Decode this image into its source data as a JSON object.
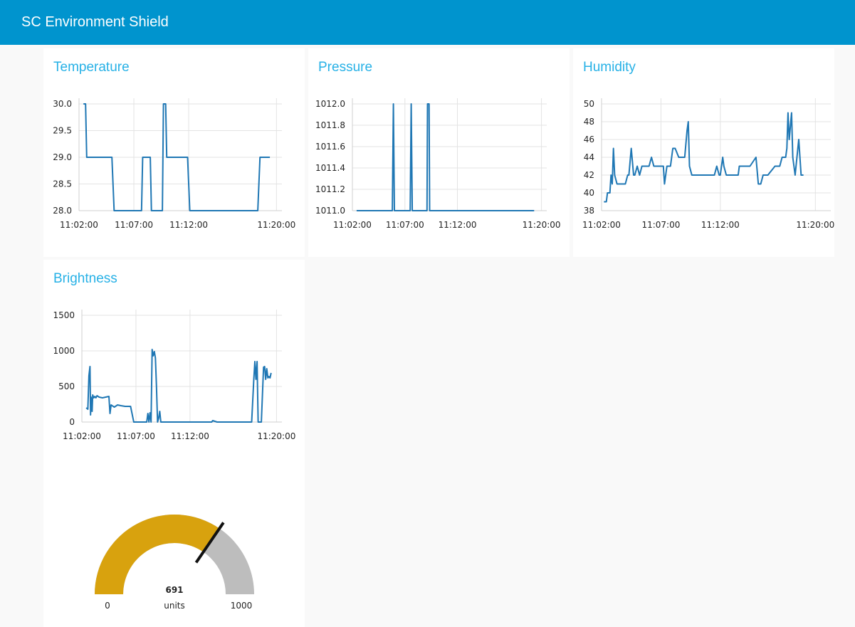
{
  "header": {
    "title": "SC Environment Shield"
  },
  "cards": {
    "temperature": "Temperature",
    "pressure": "Pressure",
    "humidity": "Humidity",
    "brightness": "Brightness"
  },
  "chart_data": [
    {
      "type": "line",
      "title": "Temperature",
      "x_ticks": [
        "11:02:00",
        "11:07:00",
        "11:12:00",
        "11:20:00"
      ],
      "x_tick_minutes": [
        0,
        5,
        10,
        18
      ],
      "y_ticks": [
        "28.0",
        "28.5",
        "29.0",
        "29.5",
        "30.0"
      ],
      "ylim": [
        28,
        30
      ],
      "xlim_minutes": [
        0,
        18.5
      ],
      "series": [
        {
          "x_minutes": [
            0.4,
            0.6,
            0.7,
            3.0,
            3.2,
            5.7,
            5.8,
            6.5,
            6.6,
            7.5,
            7.6,
            7.7,
            7.9,
            8.0,
            8.2,
            9.9,
            10.1,
            16.3,
            16.5,
            17.4
          ],
          "values": [
            30,
            30,
            29,
            29,
            28,
            28,
            29,
            29,
            28,
            28,
            28,
            30,
            30,
            29,
            29,
            29,
            28,
            28,
            29,
            29
          ]
        }
      ]
    },
    {
      "type": "line",
      "title": "Pressure",
      "x_ticks": [
        "11:02:00",
        "11:07:00",
        "11:12:00",
        "11:20:00"
      ],
      "x_tick_minutes": [
        0,
        5,
        10,
        18
      ],
      "y_ticks": [
        "1011.0",
        "1011.2",
        "1011.4",
        "1011.6",
        "1011.8",
        "1012.0"
      ],
      "ylim": [
        1011,
        1012
      ],
      "xlim_minutes": [
        0,
        18.5
      ],
      "series": [
        {
          "x_minutes": [
            0.4,
            3.8,
            3.9,
            4.0,
            5.5,
            5.6,
            5.7,
            7.1,
            7.15,
            7.3,
            7.35,
            17.3
          ],
          "values": [
            1011,
            1011,
            1012,
            1011,
            1011,
            1012,
            1011,
            1011,
            1012,
            1012,
            1011,
            1011
          ]
        }
      ]
    },
    {
      "type": "line",
      "title": "Humidity",
      "x_ticks": [
        "11:02:00",
        "11:07:00",
        "11:12:00",
        "11:20:00"
      ],
      "x_tick_minutes": [
        0,
        5,
        10,
        18
      ],
      "y_ticks": [
        "38",
        "40",
        "42",
        "44",
        "46",
        "48",
        "50"
      ],
      "ylim": [
        38,
        50
      ],
      "xlim_minutes": [
        0,
        19.3
      ],
      "series": [
        {
          "x_minutes": [
            0.2,
            0.4,
            0.5,
            0.7,
            0.8,
            0.9,
            1.0,
            1.1,
            1.3,
            1.5,
            2.0,
            2.2,
            2.3,
            2.5,
            2.7,
            2.8,
            3.0,
            3.2,
            3.4,
            3.5,
            3.6,
            4.0,
            4.2,
            4.4,
            4.6,
            5.2,
            5.3,
            5.5,
            5.8,
            6.0,
            6.2,
            6.5,
            7.0,
            7.2,
            7.3,
            7.4,
            7.6,
            7.7,
            8.0,
            9.0,
            9.5,
            9.7,
            9.9,
            10.0,
            10.2,
            10.3,
            10.5,
            11.0,
            11.3,
            11.5,
            11.6,
            11.8,
            12.0,
            12.5,
            13.0,
            13.2,
            13.4,
            13.6,
            14.0,
            14.6,
            15.0,
            15.2,
            15.3,
            15.5,
            15.6,
            15.7,
            15.8,
            16.0,
            16.1,
            16.3,
            16.6,
            16.8,
            17.0
          ],
          "values": [
            39,
            39,
            40,
            40,
            42,
            41,
            45,
            42,
            41,
            41,
            41,
            42,
            42,
            45,
            42,
            42,
            43,
            42,
            43,
            43,
            43,
            43,
            44,
            43,
            43,
            43,
            41,
            43,
            43,
            45,
            45,
            44,
            44,
            47,
            48,
            43,
            42,
            42,
            42,
            42,
            42,
            43,
            42,
            42,
            44,
            43,
            42,
            42,
            42,
            42,
            43,
            43,
            43,
            43,
            44,
            41,
            41,
            42,
            42,
            43,
            43,
            44,
            44,
            44,
            45,
            49,
            46,
            49,
            44,
            42,
            46,
            42,
            42
          ]
        }
      ]
    },
    {
      "type": "line",
      "title": "Brightness",
      "x_ticks": [
        "11:02:00",
        "11:07:00",
        "11:12:00",
        "11:20:00"
      ],
      "x_tick_minutes": [
        0,
        5,
        10,
        18
      ],
      "y_ticks": [
        "0",
        "500",
        "1000",
        "1500"
      ],
      "ylim": [
        0,
        1500
      ],
      "xlim_minutes": [
        0,
        18.5
      ],
      "series": [
        {
          "x_minutes": [
            0.4,
            0.55,
            0.65,
            0.75,
            0.8,
            0.85,
            0.95,
            1.0,
            1.1,
            1.2,
            1.3,
            1.4,
            1.6,
            1.9,
            2.2,
            2.5,
            2.6,
            2.7,
            3.0,
            3.3,
            3.6,
            4.0,
            4.5,
            4.8,
            4.9,
            5.5,
            6.0,
            6.1,
            6.2,
            6.3,
            6.4,
            6.5,
            6.6,
            6.7,
            6.8,
            6.9,
            7.0,
            7.1,
            7.2,
            7.3,
            7.4,
            7.5,
            7.6,
            7.7,
            8.0,
            10.0,
            12.0,
            12.1,
            12.5,
            15.5,
            15.7,
            15.9,
            16.0,
            16.1,
            16.2,
            16.3,
            16.5,
            16.6,
            16.8,
            16.9,
            17.0,
            17.1,
            17.2,
            17.3,
            17.4,
            17.5
          ],
          "values": [
            200,
            180,
            650,
            780,
            100,
            350,
            150,
            380,
            340,
            360,
            340,
            370,
            350,
            340,
            350,
            360,
            120,
            240,
            210,
            240,
            230,
            220,
            220,
            0,
            0,
            0,
            0,
            120,
            0,
            130,
            0,
            1020,
            930,
            990,
            900,
            500,
            0,
            50,
            150,
            0,
            0,
            0,
            0,
            0,
            0,
            0,
            0,
            20,
            0,
            0,
            0,
            600,
            850,
            600,
            850,
            0,
            0,
            0,
            770,
            780,
            600,
            750,
            620,
            640,
            620,
            690
          ]
        }
      ]
    }
  ],
  "gauge": {
    "value": 691,
    "value_label": "691",
    "min": 0,
    "min_label": "0",
    "max": 1000,
    "max_label": "1000",
    "units": "units",
    "fill_color": "#d8a20e",
    "track_color": "#bdbdbd",
    "needle_color": "#111111"
  }
}
